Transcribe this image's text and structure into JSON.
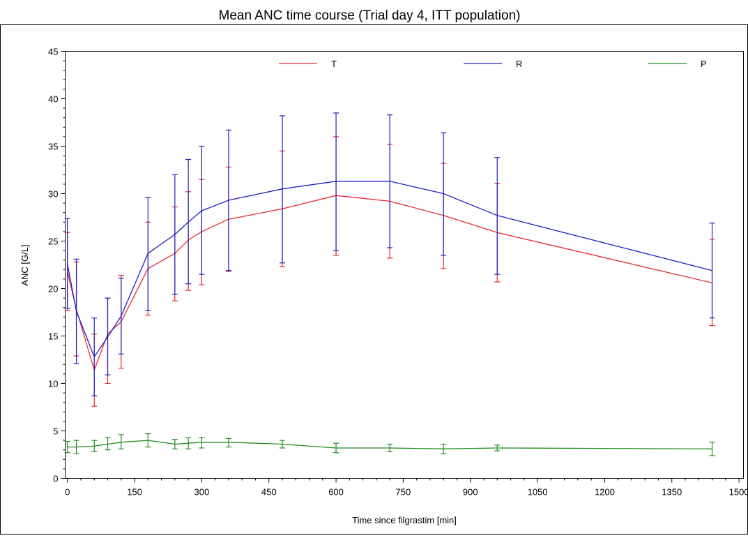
{
  "chart_data": {
    "type": "line",
    "title": "Mean ANC time course (Trial day 4, ITT population)",
    "xlabel": "Time since filgrastim [min]",
    "ylabel": "ANC [G/L]",
    "xlim": [
      -5,
      1510
    ],
    "ylim": [
      0,
      45
    ],
    "xticks": [
      0,
      150,
      300,
      450,
      600,
      750,
      900,
      1050,
      1200,
      1350,
      1500
    ],
    "yticks": [
      0,
      5,
      10,
      15,
      20,
      25,
      30,
      35,
      40,
      45
    ],
    "legend_position": "top-center",
    "grid": false,
    "x": [
      0,
      20,
      60,
      90,
      120,
      180,
      240,
      270,
      300,
      360,
      480,
      600,
      720,
      840,
      960,
      1440
    ],
    "series": [
      {
        "name": "T",
        "color": "#e8292f",
        "values": [
          21.8,
          17.8,
          11.4,
          15.2,
          16.5,
          22.1,
          23.7,
          25.1,
          26.0,
          27.3,
          28.4,
          29.8,
          29.2,
          27.7,
          25.9,
          20.6
        ],
        "lower": [
          17.7,
          12.9,
          7.6,
          10.0,
          11.6,
          17.2,
          18.7,
          19.8,
          20.4,
          21.8,
          22.3,
          23.5,
          23.2,
          22.1,
          20.7,
          16.1
        ],
        "upper": [
          25.9,
          22.8,
          15.2,
          19.0,
          21.4,
          27.0,
          28.6,
          30.2,
          31.5,
          32.8,
          34.5,
          36.0,
          35.2,
          33.2,
          31.1,
          25.2
        ]
      },
      {
        "name": "R",
        "color": "#2020c8",
        "values": [
          22.6,
          17.6,
          12.8,
          14.9,
          17.1,
          23.7,
          25.7,
          27.0,
          28.2,
          29.3,
          30.5,
          31.3,
          31.3,
          30.0,
          27.7,
          21.9
        ],
        "lower": [
          17.9,
          12.1,
          8.7,
          10.9,
          13.1,
          17.7,
          19.4,
          20.5,
          21.5,
          21.9,
          22.7,
          24.0,
          24.3,
          23.5,
          21.5,
          16.9
        ],
        "upper": [
          27.4,
          23.1,
          16.9,
          19.0,
          21.1,
          29.6,
          32.0,
          33.6,
          35.0,
          36.7,
          38.2,
          38.5,
          38.3,
          36.4,
          33.8,
          26.9
        ]
      },
      {
        "name": "P",
        "color": "#228b22",
        "values": [
          3.3,
          3.3,
          3.4,
          3.6,
          3.8,
          4.0,
          3.6,
          3.7,
          3.8,
          3.8,
          3.6,
          3.2,
          3.2,
          3.1,
          3.2,
          3.1
        ],
        "lower": [
          2.7,
          2.6,
          2.8,
          3.0,
          3.1,
          3.3,
          3.1,
          3.1,
          3.2,
          3.3,
          3.2,
          2.7,
          2.8,
          2.6,
          2.9,
          2.4
        ],
        "upper": [
          3.9,
          4.0,
          4.0,
          4.3,
          4.6,
          4.7,
          4.1,
          4.3,
          4.3,
          4.2,
          4.0,
          3.7,
          3.6,
          3.6,
          3.5,
          3.8
        ]
      }
    ]
  }
}
